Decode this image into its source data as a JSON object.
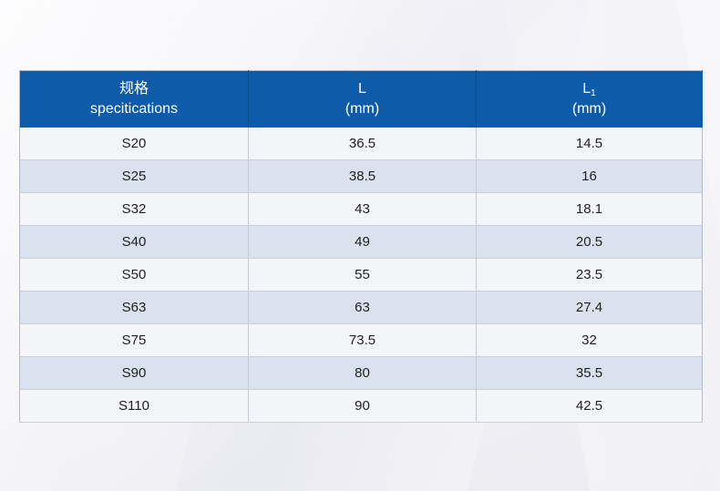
{
  "colors": {
    "header_bg": "#0e5ca9",
    "header_text": "#ffffff",
    "header_divider": "#0a4e92",
    "row_bg": "#f4f5f9",
    "row_alt_bg": "#d9e2ee",
    "body_text": "#1f1f1f",
    "body_divider": "#c5c9d1",
    "row_border": "#caced6",
    "border_outer": "#b4b8c1",
    "page_bg": "#f1f1f6"
  },
  "table": {
    "header": {
      "col_spec": {
        "line1": "规格",
        "line2": "specitications"
      },
      "col_l": {
        "line1": "L",
        "line2": "(mm)"
      },
      "col_l1": {
        "base": "L",
        "sub": "1",
        "line2": "(mm)"
      }
    },
    "rows": [
      {
        "spec": "S20",
        "l": "36.5",
        "l1": "14.5"
      },
      {
        "spec": "S25",
        "l": "38.5",
        "l1": "16"
      },
      {
        "spec": "S32",
        "l": "43",
        "l1": "18.1"
      },
      {
        "spec": "S40",
        "l": "49",
        "l1": "20.5"
      },
      {
        "spec": "S50",
        "l": "55",
        "l1": "23.5"
      },
      {
        "spec": "S63",
        "l": "63",
        "l1": "27.4"
      },
      {
        "spec": "S75",
        "l": "73.5",
        "l1": "32"
      },
      {
        "spec": "S90",
        "l": "80",
        "l1": "35.5"
      },
      {
        "spec": "S110",
        "l": "90",
        "l1": "42.5"
      }
    ]
  },
  "chart_data": {
    "type": "table",
    "title": "",
    "columns": [
      "规格 specitications",
      "L (mm)",
      "L1 (mm)"
    ],
    "categories": [
      "S20",
      "S25",
      "S32",
      "S40",
      "S50",
      "S63",
      "S75",
      "S90",
      "S110"
    ],
    "series": [
      {
        "name": "L (mm)",
        "values": [
          36.5,
          38.5,
          43,
          49,
          55,
          63,
          73.5,
          80,
          90
        ]
      },
      {
        "name": "L1 (mm)",
        "values": [
          14.5,
          16,
          18.1,
          20.5,
          23.5,
          27.4,
          32,
          35.5,
          42.5
        ]
      }
    ]
  }
}
